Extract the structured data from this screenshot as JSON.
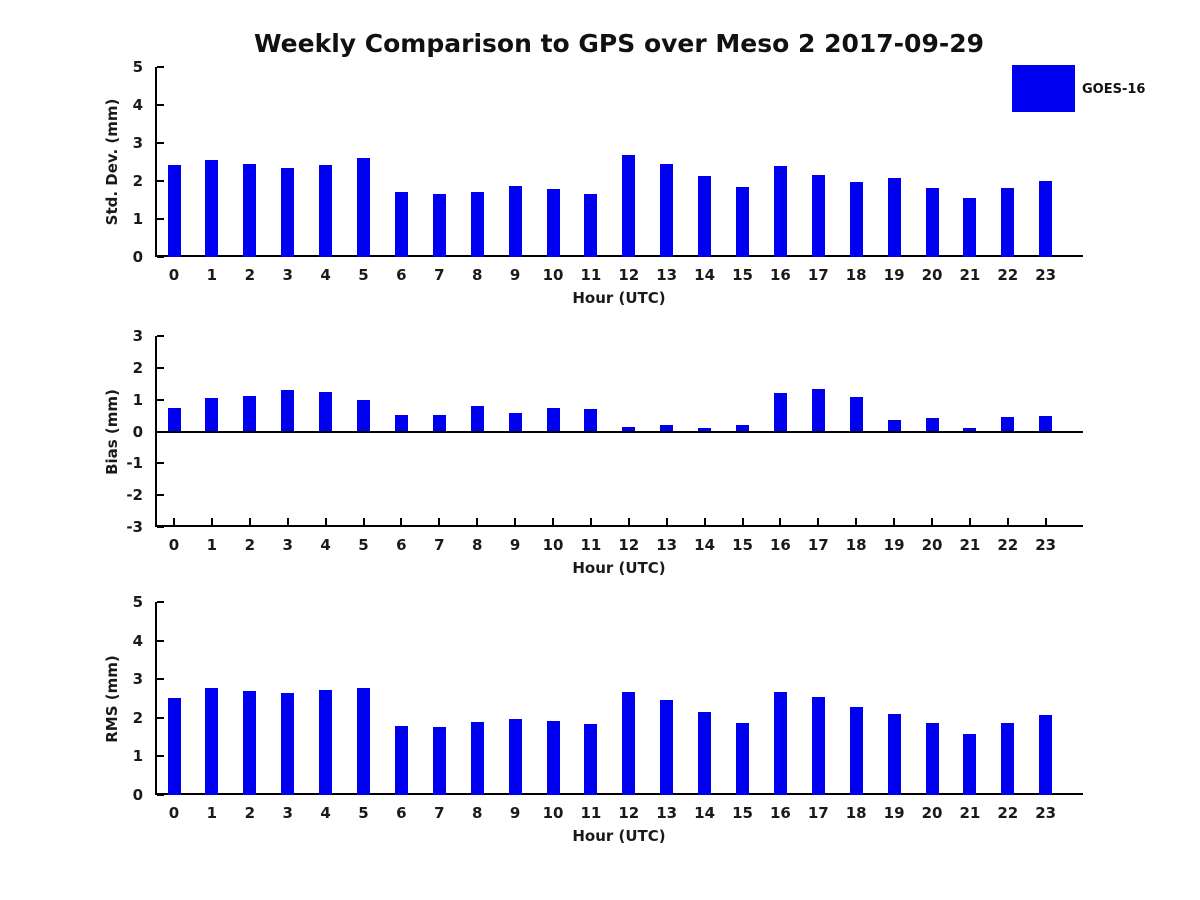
{
  "figure": {
    "title": "Weekly Comparison to GPS over Meso 2 2017-09-29",
    "legend": {
      "label": "GOES-16",
      "color": "#0000f0"
    }
  },
  "colors": {
    "bar": "#0000f0",
    "axis": "#000000",
    "text": "#1a1a1a",
    "background": "#ffffff"
  },
  "chart_data": [
    {
      "type": "bar",
      "title": "",
      "ylabel": "Std. Dev. (mm)",
      "xlabel": "Hour (UTC)",
      "ylim": [
        0,
        5
      ],
      "yticks": [
        0,
        1,
        2,
        3,
        4,
        5
      ],
      "legend_position": "top-right-outside",
      "grid": false,
      "categories": [
        "0",
        "1",
        "2",
        "3",
        "4",
        "5",
        "6",
        "7",
        "8",
        "9",
        "10",
        "11",
        "12",
        "13",
        "14",
        "15",
        "16",
        "17",
        "18",
        "19",
        "20",
        "21",
        "22",
        "23"
      ],
      "values": [
        2.42,
        2.55,
        2.45,
        2.33,
        2.42,
        2.6,
        1.72,
        1.67,
        1.72,
        1.88,
        1.78,
        1.67,
        2.68,
        2.44,
        2.14,
        1.85,
        2.39,
        2.16,
        1.98,
        2.08,
        1.82,
        1.56,
        1.82,
        2.01
      ]
    },
    {
      "type": "bar",
      "title": "",
      "ylabel": "Bias (mm)",
      "xlabel": "Hour (UTC)",
      "ylim": [
        -3,
        3
      ],
      "yticks": [
        -3,
        -2,
        -1,
        0,
        1,
        2,
        3
      ],
      "grid": false,
      "categories": [
        "0",
        "1",
        "2",
        "3",
        "4",
        "5",
        "6",
        "7",
        "8",
        "9",
        "10",
        "11",
        "12",
        "13",
        "14",
        "15",
        "16",
        "17",
        "18",
        "19",
        "20",
        "21",
        "22",
        "23"
      ],
      "values": [
        0.74,
        1.06,
        1.13,
        1.29,
        1.25,
        0.98,
        0.52,
        0.52,
        0.79,
        0.58,
        0.74,
        0.7,
        0.15,
        0.2,
        0.12,
        0.2,
        1.21,
        1.32,
        1.08,
        0.36,
        0.43,
        0.12,
        0.45,
        0.48
      ]
    },
    {
      "type": "bar",
      "title": "",
      "ylabel": "RMS (mm)",
      "xlabel": "Hour (UTC)",
      "ylim": [
        0,
        5
      ],
      "yticks": [
        0,
        1,
        2,
        3,
        4,
        5
      ],
      "grid": false,
      "categories": [
        "0",
        "1",
        "2",
        "3",
        "4",
        "5",
        "6",
        "7",
        "8",
        "9",
        "10",
        "11",
        "12",
        "13",
        "14",
        "15",
        "16",
        "17",
        "18",
        "19",
        "20",
        "21",
        "22",
        "23"
      ],
      "values": [
        2.52,
        2.77,
        2.7,
        2.65,
        2.72,
        2.77,
        1.8,
        1.75,
        1.9,
        1.98,
        1.93,
        1.83,
        2.67,
        2.45,
        2.15,
        1.86,
        2.68,
        2.54,
        2.27,
        2.1,
        1.87,
        1.57,
        1.86,
        2.08
      ]
    }
  ]
}
